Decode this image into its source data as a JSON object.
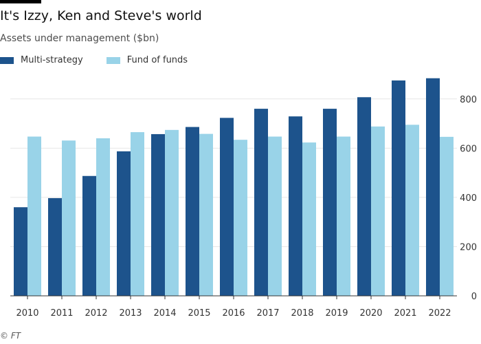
{
  "title": "It's Izzy, Ken and Steve's world",
  "subtitle": "Assets under management ($bn)",
  "source": "© FT",
  "colors": {
    "multi_strategy": "#1d538c",
    "fund_of_funds": "#99d3e8"
  },
  "chart_data": {
    "type": "bar",
    "categories": [
      "2010",
      "2011",
      "2012",
      "2013",
      "2014",
      "2015",
      "2016",
      "2017",
      "2018",
      "2019",
      "2020",
      "2021",
      "2022"
    ],
    "series": [
      {
        "name": "Multi-strategy",
        "values": [
          360,
          397,
          487,
          587,
          657,
          686,
          723,
          760,
          729,
          760,
          807,
          875,
          884
        ]
      },
      {
        "name": "Fund of funds",
        "values": [
          647,
          631,
          640,
          665,
          674,
          658,
          634,
          647,
          623,
          647,
          688,
          695,
          646
        ]
      }
    ],
    "y_ticks": [
      0,
      200,
      400,
      600,
      800
    ],
    "ylim": [
      0,
      900
    ],
    "y_axis_position": "right",
    "gridlines": true,
    "legend_position": "top-left"
  }
}
